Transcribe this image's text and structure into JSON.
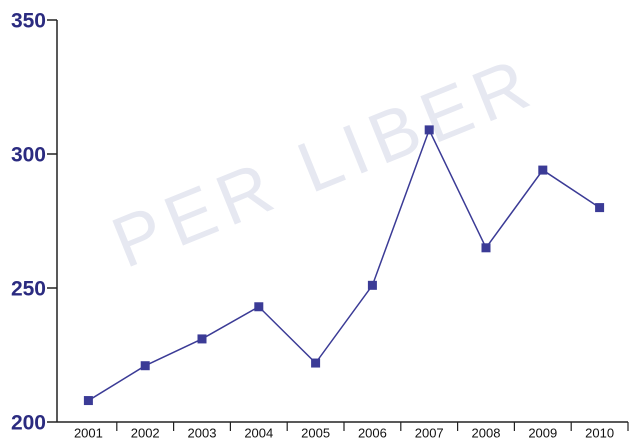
{
  "chart_data": {
    "type": "line",
    "watermark": "PER LIBER",
    "categories": [
      "2001",
      "2002",
      "2003",
      "2004",
      "2005",
      "2006",
      "2007",
      "2008",
      "2009",
      "2010"
    ],
    "values": [
      208,
      221,
      231,
      243,
      222,
      251,
      309,
      265,
      294,
      280
    ],
    "color": "#3b3b96",
    "ylim": [
      200,
      350
    ],
    "yticks": [
      200,
      250,
      300,
      350
    ],
    "grid": false
  }
}
